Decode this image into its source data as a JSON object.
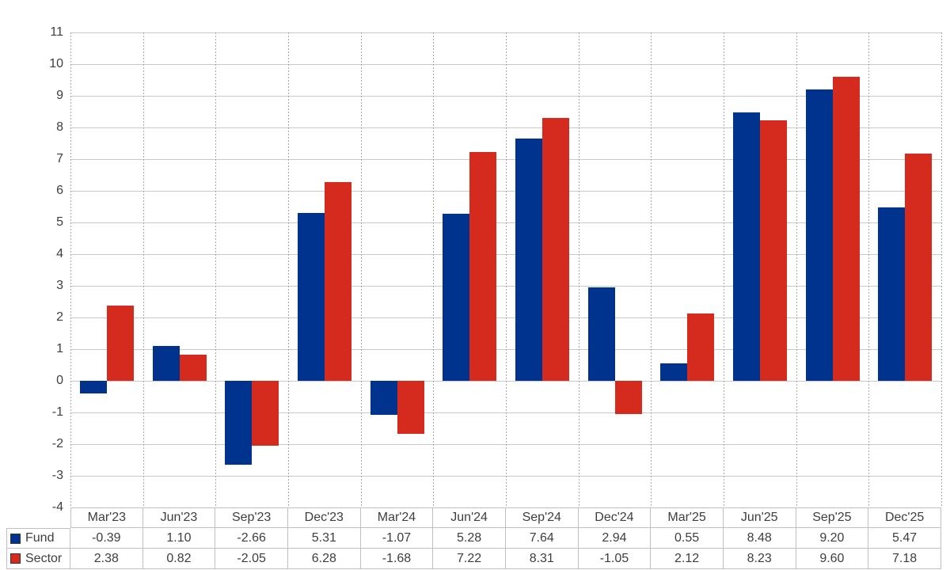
{
  "chart_data": {
    "type": "bar",
    "title": "",
    "xlabel": "",
    "ylabel": "",
    "categories": [
      "Mar'23",
      "Jun'23",
      "Sep'23",
      "Dec'23",
      "Mar'24",
      "Jun'24",
      "Sep'24",
      "Dec'24",
      "Mar'25",
      "Jun'25",
      "Sep'25",
      "Dec'25"
    ],
    "series": [
      {
        "name": "Fund",
        "color": "#00338D",
        "values": [
          -0.39,
          1.1,
          -2.66,
          5.31,
          -1.07,
          5.28,
          7.64,
          2.94,
          0.55,
          8.48,
          9.2,
          5.47
        ],
        "labels": [
          "-0.39",
          "1.10",
          "-2.66",
          "5.31",
          "-1.07",
          "5.28",
          "7.64",
          "2.94",
          "0.55",
          "8.48",
          "9.20",
          "5.47"
        ]
      },
      {
        "name": "Sector",
        "color": "#D52B1E",
        "values": [
          2.38,
          0.82,
          -2.05,
          6.28,
          -1.68,
          7.22,
          8.31,
          -1.05,
          2.12,
          8.23,
          9.6,
          7.18
        ],
        "labels": [
          "2.38",
          "0.82",
          "-2.05",
          "6.28",
          "-1.68",
          "7.22",
          "8.31",
          "-1.05",
          "2.12",
          "8.23",
          "9.60",
          "7.18"
        ]
      }
    ],
    "ylim": [
      -4,
      11
    ],
    "ytick_step": 1,
    "grid": true,
    "legend_position": "table-left"
  },
  "styles": {
    "fund_color": "#00338D",
    "sector_color": "#D52B1E",
    "negative_text_color": "#FF0000",
    "text_color": "#3E3E3E",
    "hgrid_color": "#C9C9C9",
    "vgrid_color": "#A6A6A6",
    "table_border_color": "#C0C0C0",
    "background": "#FFFFFF"
  }
}
